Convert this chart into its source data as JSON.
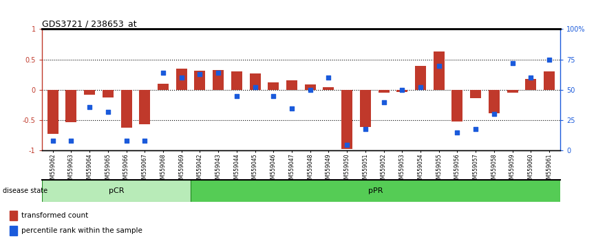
{
  "title": "GDS3721 / 238653_at",
  "samples": [
    "GSM559062",
    "GSM559063",
    "GSM559064",
    "GSM559065",
    "GSM559066",
    "GSM559067",
    "GSM559068",
    "GSM559069",
    "GSM559042",
    "GSM559043",
    "GSM559044",
    "GSM559045",
    "GSM559046",
    "GSM559047",
    "GSM559048",
    "GSM559049",
    "GSM559050",
    "GSM559051",
    "GSM559052",
    "GSM559053",
    "GSM559054",
    "GSM559055",
    "GSM559056",
    "GSM559057",
    "GSM559058",
    "GSM559059",
    "GSM559060",
    "GSM559061"
  ],
  "transformed_count": [
    -0.72,
    -0.53,
    -0.08,
    -0.12,
    -0.62,
    -0.57,
    0.1,
    0.35,
    0.32,
    0.33,
    0.3,
    0.27,
    0.12,
    0.16,
    0.09,
    0.04,
    -0.97,
    -0.61,
    -0.04,
    -0.03,
    0.4,
    0.63,
    -0.52,
    -0.14,
    -0.38,
    -0.04,
    0.18,
    0.3
  ],
  "percentile_rank": [
    8,
    8,
    36,
    32,
    8,
    8,
    64,
    60,
    63,
    64,
    45,
    52,
    45,
    35,
    50,
    60,
    5,
    18,
    40,
    50,
    52,
    70,
    15,
    18,
    30,
    72,
    60,
    75
  ],
  "pCR_count": 8,
  "bar_color": "#c0392b",
  "dot_color": "#1a5adb",
  "pCR_color": "#b8ebb8",
  "pPR_color": "#55cc55",
  "ylim": [
    -1.0,
    1.0
  ],
  "yticks_left": [
    -1,
    -0.5,
    0,
    0.5,
    1
  ],
  "ytick_labels_left": [
    "-1",
    "-0.5",
    "0",
    "0.5",
    "1"
  ],
  "y2_ticks_pct": [
    0,
    25,
    50,
    75,
    100
  ],
  "y2_labels": [
    "0",
    "25",
    "50",
    "75",
    "100%"
  ],
  "dotted_lines": [
    0.5,
    0.0,
    -0.5
  ],
  "legend_red": "transformed count",
  "legend_blue": "percentile rank within the sample",
  "disease_state_label": "disease state",
  "pCR_label": "pCR",
  "pPR_label": "pPR"
}
